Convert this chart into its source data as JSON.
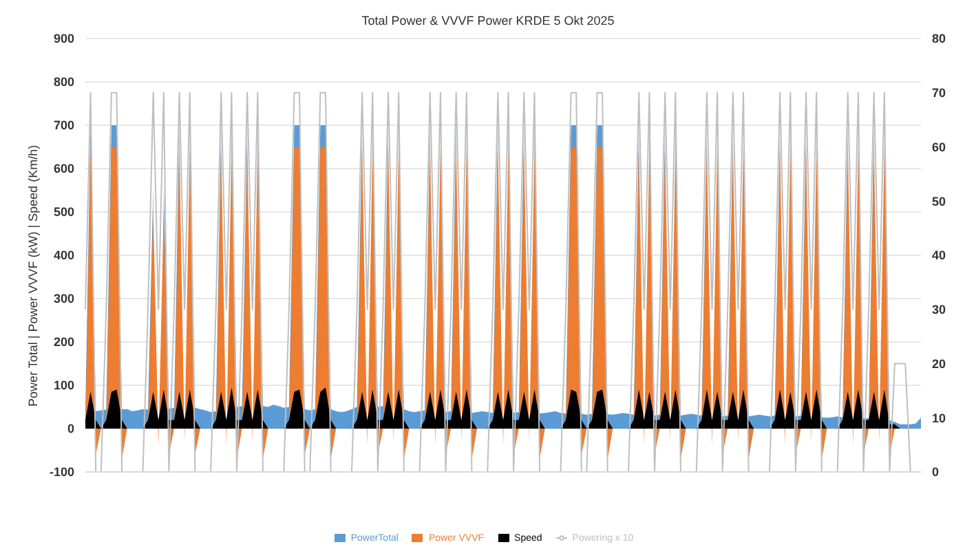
{
  "chart_data": {
    "type": "area",
    "title": "Total Power & VVVF Power KRDE 5 Okt 2025",
    "ylabel": "Power Total | Power VVVF (kW) | Speed (Km/h)",
    "categories": [
      null,
      null,
      null,
      null,
      null,
      null,
      null,
      null,
      null,
      null,
      null,
      null,
      null,
      null,
      null,
      null,
      null,
      null,
      null,
      null,
      null,
      null,
      null,
      null,
      null,
      null,
      null,
      null,
      null,
      null,
      null,
      null,
      null,
      null,
      null,
      null,
      null,
      null,
      null,
      null,
      null,
      null,
      null,
      null,
      null,
      null,
      null,
      null,
      null,
      null,
      null,
      null,
      null,
      null,
      null,
      null,
      null,
      null,
      null,
      null,
      null,
      null,
      null,
      null,
      null,
      null,
      null,
      null,
      null,
      null,
      null,
      null,
      null,
      null,
      null,
      null,
      null,
      null,
      null,
      null,
      null,
      null,
      null,
      null,
      null,
      null,
      null,
      null,
      null,
      null,
      null,
      null,
      null,
      null,
      null,
      null,
      null,
      null,
      null,
      null,
      null,
      null,
      null,
      null,
      null,
      null,
      null,
      null,
      null,
      null,
      null,
      null,
      null,
      null,
      null,
      null,
      null,
      null,
      null,
      null,
      null,
      null,
      null,
      null,
      null,
      null,
      null,
      null,
      null,
      null,
      null,
      null,
      null,
      null,
      null,
      null,
      null,
      null,
      null,
      null,
      null,
      null,
      null,
      null,
      null,
      null,
      null,
      null,
      null,
      null,
      null,
      null,
      null,
      null,
      null,
      null,
      null,
      null,
      null,
      null,
      null
    ],
    "series": [
      {
        "name": "PowerTotal",
        "color": "#5b9bd5",
        "values": [
          40,
          700,
          40,
          42,
          44,
          700,
          700,
          45,
          45,
          40,
          42,
          45,
          44,
          560,
          null,
          560,
          46,
          48,
          700,
          null,
          700,
          48,
          45,
          42,
          38,
          40,
          700,
          null,
          700,
          50,
          52,
          700,
          null,
          700,
          52,
          50,
          55,
          52,
          48,
          50,
          700,
          700,
          45,
          42,
          45,
          700,
          700,
          45,
          40,
          38,
          40,
          45,
          50,
          700,
          null,
          700,
          50,
          52,
          700,
          null,
          700,
          45,
          40,
          38,
          40,
          42,
          700,
          null,
          700,
          38,
          40,
          700,
          null,
          700,
          36,
          38,
          40,
          38,
          36,
          700,
          null,
          700,
          36,
          38,
          700,
          null,
          700,
          35,
          36,
          38,
          40,
          36,
          35,
          700,
          700,
          34,
          32,
          34,
          700,
          700,
          33,
          32,
          34,
          36,
          34,
          32,
          700,
          null,
          700,
          30,
          32,
          700,
          null,
          700,
          30,
          32,
          34,
          32,
          30,
          690,
          null,
          690,
          28,
          30,
          690,
          null,
          690,
          28,
          30,
          32,
          30,
          28,
          30,
          690,
          null,
          690,
          28,
          30,
          690,
          null,
          690,
          26,
          25,
          26,
          28,
          26,
          700,
          null,
          700,
          24,
          24,
          700,
          null,
          700,
          20,
          15,
          10,
          10,
          10,
          12,
          25
        ]
      },
      {
        "name": "Power VVVF",
        "color": "#ed7d31",
        "values": [
          0,
          650,
          -60,
          0,
          0,
          650,
          650,
          -70,
          0,
          0,
          0,
          0,
          0,
          505,
          -40,
          505,
          -60,
          0,
          650,
          -30,
          650,
          -60,
          0,
          0,
          0,
          0,
          650,
          -40,
          650,
          -70,
          0,
          650,
          -30,
          650,
          -70,
          0,
          0,
          0,
          0,
          0,
          650,
          650,
          -60,
          0,
          0,
          650,
          650,
          -70,
          0,
          0,
          0,
          0,
          0,
          650,
          -40,
          650,
          -60,
          0,
          650,
          -30,
          650,
          -70,
          0,
          0,
          0,
          0,
          650,
          -40,
          650,
          -60,
          0,
          650,
          -30,
          650,
          -70,
          0,
          0,
          0,
          0,
          650,
          -40,
          650,
          -60,
          0,
          650,
          -30,
          650,
          -70,
          0,
          0,
          0,
          0,
          0,
          650,
          650,
          -60,
          0,
          0,
          650,
          650,
          -70,
          0,
          0,
          0,
          0,
          0,
          650,
          -40,
          650,
          -60,
          0,
          650,
          -30,
          650,
          -70,
          0,
          0,
          0,
          0,
          650,
          -40,
          650,
          -60,
          0,
          650,
          -30,
          650,
          -70,
          0,
          0,
          0,
          0,
          0,
          650,
          -40,
          650,
          -60,
          0,
          650,
          -30,
          650,
          -70,
          0,
          0,
          0,
          0,
          650,
          -40,
          650,
          -60,
          0,
          650,
          -30,
          650,
          -60,
          0,
          0,
          0,
          0,
          0,
          0
        ]
      },
      {
        "name": "Speed",
        "color": "#000000",
        "values": [
          20,
          85,
          20,
          0,
          20,
          85,
          90,
          20,
          0,
          0,
          0,
          0,
          20,
          85,
          20,
          90,
          20,
          20,
          85,
          20,
          90,
          20,
          0,
          0,
          0,
          20,
          85,
          20,
          95,
          20,
          20,
          85,
          20,
          90,
          20,
          0,
          0,
          0,
          0,
          20,
          85,
          90,
          20,
          0,
          20,
          85,
          95,
          20,
          0,
          0,
          0,
          0,
          20,
          85,
          20,
          90,
          20,
          20,
          85,
          20,
          90,
          20,
          0,
          0,
          0,
          20,
          85,
          20,
          90,
          20,
          20,
          85,
          20,
          90,
          20,
          0,
          0,
          0,
          20,
          85,
          20,
          90,
          20,
          20,
          85,
          20,
          90,
          20,
          0,
          0,
          0,
          0,
          20,
          90,
          85,
          20,
          0,
          20,
          85,
          90,
          20,
          0,
          0,
          0,
          0,
          20,
          90,
          20,
          85,
          20,
          20,
          85,
          20,
          90,
          20,
          0,
          0,
          0,
          20,
          90,
          20,
          85,
          20,
          20,
          85,
          20,
          90,
          20,
          0,
          0,
          0,
          0,
          20,
          90,
          20,
          85,
          20,
          20,
          85,
          20,
          90,
          20,
          0,
          0,
          0,
          20,
          85,
          20,
          90,
          20,
          20,
          85,
          20,
          90,
          10,
          10,
          0,
          0,
          0,
          0,
          0
        ]
      },
      {
        "name": "Powering x 10",
        "type": "line",
        "axis": "y2",
        "color": "#bfbfbf",
        "values": [
          30,
          70,
          0,
          0,
          30,
          70,
          70,
          0,
          0,
          0,
          0,
          0,
          30,
          70,
          30,
          70,
          0,
          30,
          70,
          30,
          70,
          0,
          0,
          0,
          0,
          30,
          70,
          30,
          70,
          0,
          30,
          70,
          30,
          70,
          0,
          0,
          0,
          0,
          0,
          30,
          70,
          70,
          0,
          0,
          30,
          70,
          70,
          0,
          0,
          0,
          0,
          0,
          30,
          70,
          30,
          70,
          0,
          30,
          70,
          30,
          70,
          0,
          0,
          0,
          0,
          30,
          70,
          30,
          70,
          0,
          30,
          70,
          30,
          70,
          0,
          0,
          0,
          0,
          30,
          70,
          30,
          70,
          0,
          30,
          70,
          30,
          70,
          0,
          0,
          0,
          0,
          0,
          30,
          70,
          70,
          0,
          0,
          30,
          70,
          70,
          0,
          0,
          0,
          0,
          0,
          30,
          70,
          30,
          70,
          0,
          30,
          70,
          30,
          70,
          0,
          0,
          0,
          0,
          30,
          70,
          30,
          70,
          0,
          30,
          70,
          30,
          70,
          0,
          0,
          0,
          0,
          0,
          30,
          70,
          30,
          70,
          0,
          30,
          70,
          30,
          70,
          0,
          0,
          0,
          0,
          30,
          70,
          30,
          70,
          0,
          30,
          70,
          30,
          70,
          0,
          20,
          20,
          20,
          0,
          0,
          0
        ]
      }
    ],
    "ylim": [
      -100,
      900
    ],
    "yticks": [
      -100,
      0,
      100,
      200,
      300,
      400,
      500,
      600,
      700,
      800,
      900
    ],
    "y2lim": [
      0,
      80
    ],
    "y2ticks": [
      0,
      10,
      20,
      30,
      40,
      50,
      60,
      70,
      80
    ],
    "grid": "y",
    "legend": "bottom"
  }
}
